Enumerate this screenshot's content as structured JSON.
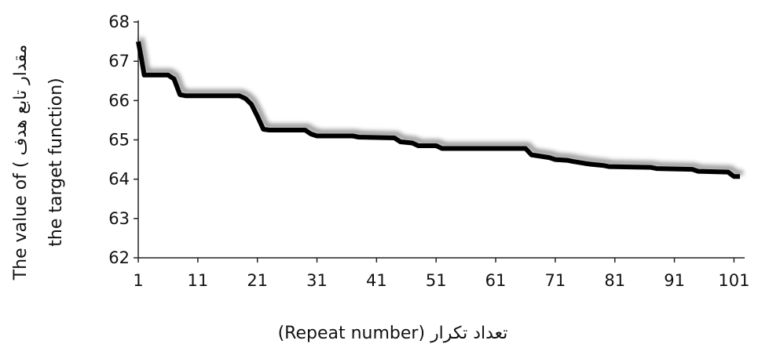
{
  "chart_data": {
    "type": "line",
    "title": "",
    "xlabel": "(Repeat number) تعداد تکرار",
    "ylabel": "The value of ( مقدار تابع هدف",
    "ylabel_line2": "the target function)",
    "xlim": [
      1,
      102
    ],
    "ylim": [
      62,
      68
    ],
    "xticks": [
      1,
      11,
      21,
      31,
      41,
      51,
      61,
      71,
      81,
      91,
      101
    ],
    "yticks": [
      62,
      63,
      64,
      65,
      66,
      67,
      68
    ],
    "grid": false,
    "legend": "none",
    "line_color": "#000000",
    "series": [
      {
        "x": [
          1,
          1.5,
          2,
          6,
          7,
          8,
          9,
          18,
          19,
          20,
          21,
          22,
          23,
          29,
          30,
          31,
          32,
          37,
          38,
          44,
          45,
          47,
          48,
          51,
          52,
          66,
          67,
          70,
          71,
          73,
          74,
          76,
          77,
          79,
          80,
          87,
          88,
          94,
          95,
          100,
          101,
          102
        ],
        "y": [
          67.5,
          67.1,
          66.65,
          66.65,
          66.55,
          66.15,
          66.12,
          66.12,
          66.05,
          65.9,
          65.6,
          65.27,
          65.25,
          65.25,
          65.15,
          65.1,
          65.1,
          65.1,
          65.07,
          65.05,
          64.95,
          64.92,
          64.85,
          64.85,
          64.78,
          64.78,
          64.62,
          64.55,
          64.5,
          64.48,
          64.45,
          64.4,
          64.38,
          64.35,
          64.32,
          64.3,
          64.27,
          64.25,
          64.2,
          64.18,
          64.07,
          64.07
        ]
      }
    ]
  }
}
